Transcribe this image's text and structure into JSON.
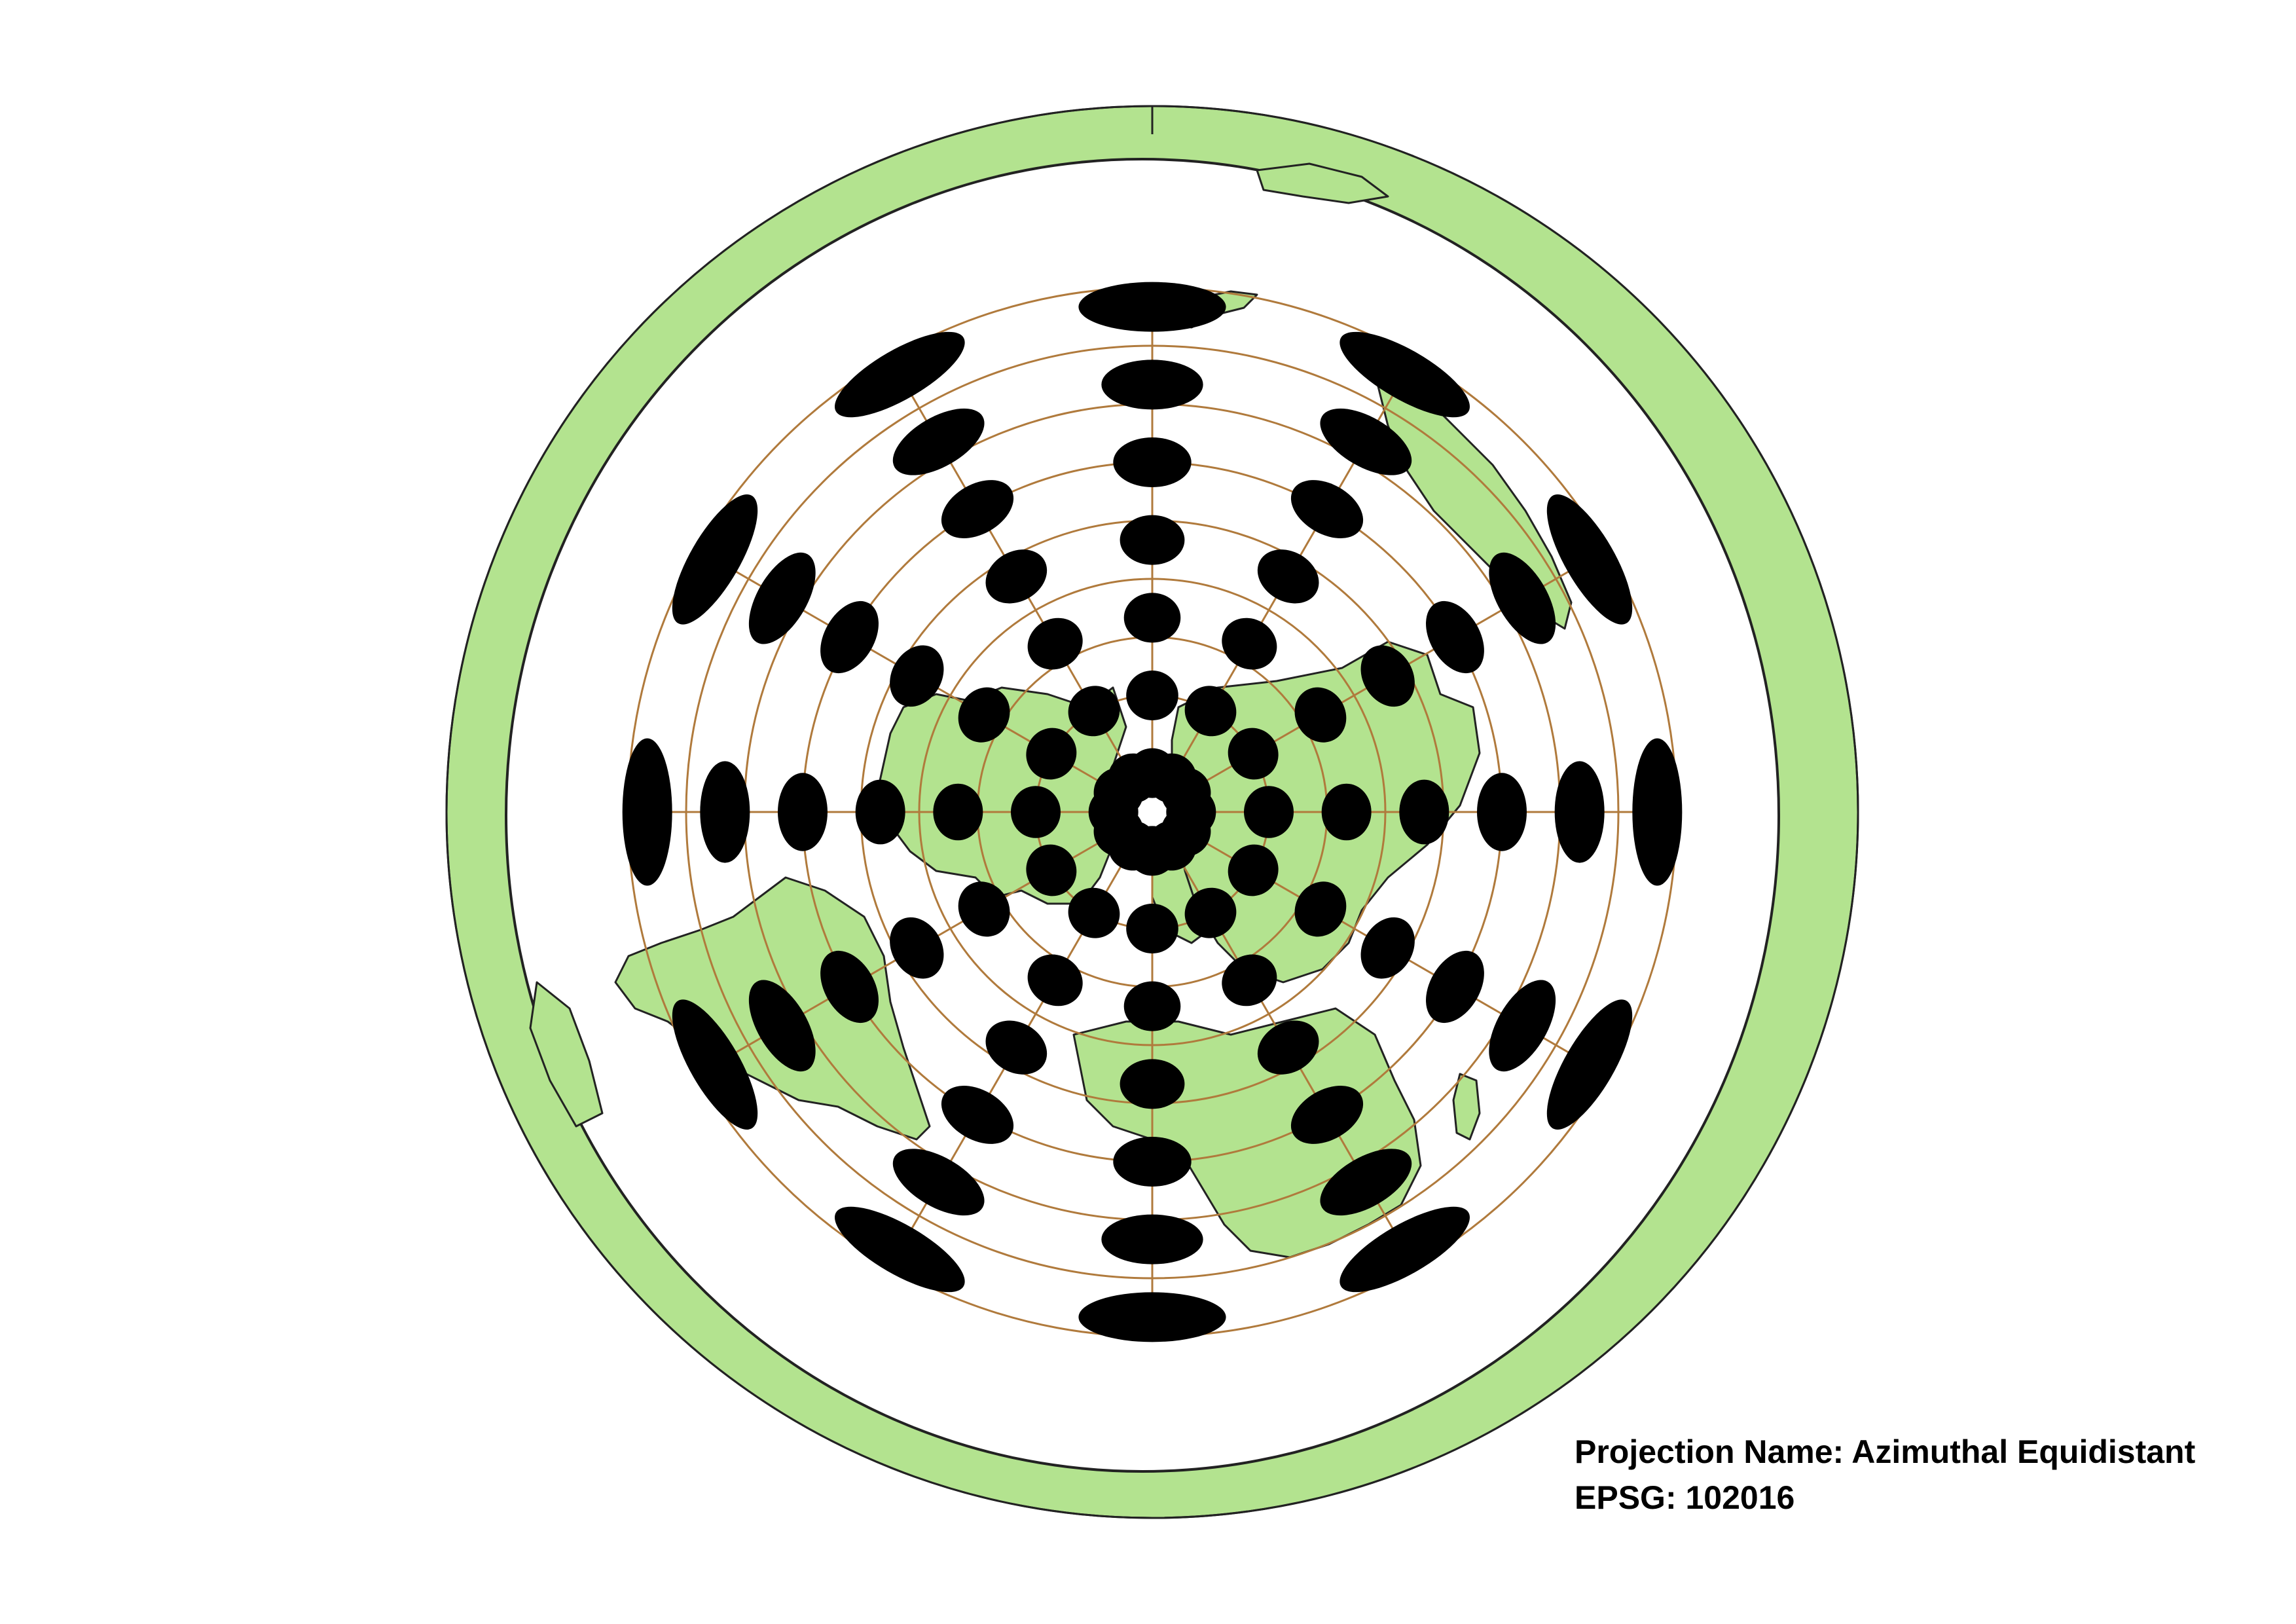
{
  "caption": {
    "projection_line": "Projection Name: Azimuthal Equidistant",
    "epsg_line": "EPSG: 102016"
  },
  "map": {
    "projection": "Azimuthal Equidistant",
    "center": "North Pole",
    "graticule_parallels_deg": [
      75,
      60,
      45,
      30,
      15,
      0,
      -15,
      -30,
      -45
    ],
    "graticule_meridians_deg": [
      0,
      30,
      60,
      90,
      120,
      150,
      180,
      210,
      240,
      270,
      300,
      330
    ],
    "indicatrix_latitudes_deg": [
      80,
      60,
      40,
      20,
      0,
      -20,
      -40
    ],
    "indicatrix_longitudes_deg": [
      0,
      30,
      60,
      90,
      120,
      150,
      180,
      210,
      240,
      270,
      300,
      330
    ],
    "colors": {
      "land": "#b3e38f",
      "outline": "#222222",
      "graticule": "#b07a3c",
      "indicatrix": "#000000",
      "background": "#ffffff"
    }
  }
}
